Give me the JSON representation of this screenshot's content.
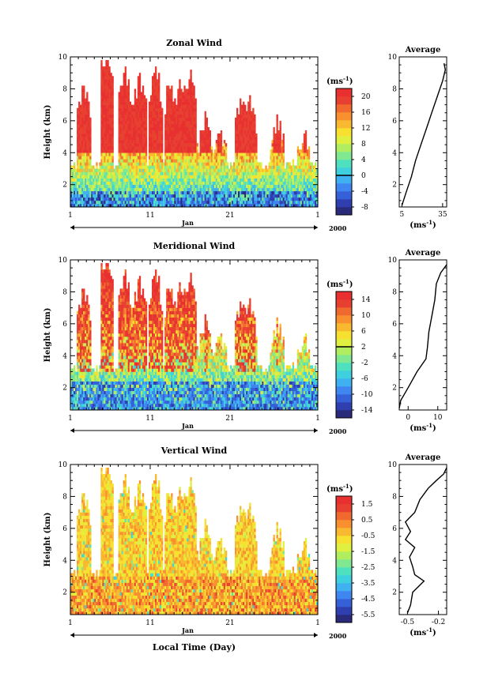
{
  "figure": {
    "xlabel": "Local Time (Day)",
    "month_label": "Jan",
    "year_label": "2000",
    "ylabel": "Height (km)",
    "unit": "(ms",
    "unit_exp": "-1",
    "unit_close": ")",
    "avg_title": "Average"
  },
  "chart_data": [
    {
      "type": "heatmap",
      "title": "Zonal Wind",
      "xlabel": "",
      "ylabel": "Height (km)",
      "x_ticks": [
        "1",
        "11",
        "21",
        "1"
      ],
      "x_range_days": [
        1,
        32
      ],
      "ylim": [
        0.6,
        10
      ],
      "y_ticks": [
        2,
        4,
        6,
        8,
        10
      ],
      "colorbar": {
        "unit": "ms-1",
        "ticks": [
          "20",
          "16",
          "12",
          "8",
          "4",
          "0",
          "-4",
          "-8"
        ],
        "range": [
          -10,
          22
        ],
        "zero_line": 0,
        "colors": [
          "#2a2a7a",
          "#2f3fb0",
          "#3560d8",
          "#3f86f0",
          "#3fb0f0",
          "#3fd0e0",
          "#4fe0c0",
          "#7fe890",
          "#b0ee60",
          "#e0f040",
          "#f8e030",
          "#f8b830",
          "#f89030",
          "#f06a30",
          "#e84030",
          "#e83030"
        ]
      },
      "average_profile": {
        "xlabel": "(ms-1)",
        "x_ticks": [
          "5",
          "35"
        ],
        "xlim": [
          3,
          38
        ],
        "height_km": [
          0.7,
          1.5,
          2.5,
          3.5,
          4.5,
          5.5,
          6.5,
          7.5,
          8.5,
          9.2,
          9.6
        ],
        "values": [
          5,
          8,
          12,
          15,
          19,
          23,
          27,
          31,
          35,
          37,
          36
        ]
      }
    },
    {
      "type": "heatmap",
      "title": "Meridional Wind",
      "xlabel": "",
      "ylabel": "Height (km)",
      "x_ticks": [
        "1",
        "11",
        "21",
        "1"
      ],
      "x_range_days": [
        1,
        32
      ],
      "ylim": [
        0.6,
        10
      ],
      "y_ticks": [
        2,
        4,
        6,
        8,
        10
      ],
      "colorbar": {
        "unit": "ms-1",
        "ticks": [
          "14",
          "10",
          "6",
          "2",
          "-2",
          "-6",
          "-10",
          "-14"
        ],
        "range": [
          -16,
          16
        ],
        "zero_line": 2,
        "colors": [
          "#2a2a7a",
          "#2f3fb0",
          "#3560d8",
          "#3f86f0",
          "#3fb0f0",
          "#3fd0e0",
          "#4fe0c0",
          "#7fe890",
          "#b0ee60",
          "#e0f040",
          "#f8e030",
          "#f8b830",
          "#f89030",
          "#f06a30",
          "#e84030",
          "#e83030"
        ]
      },
      "average_profile": {
        "xlabel": "(ms-1)",
        "x_ticks": [
          "0",
          "10"
        ],
        "xlim": [
          -3,
          13
        ],
        "height_km": [
          0.7,
          1.2,
          2,
          3,
          3.8,
          4.5,
          5.5,
          6.5,
          7.5,
          8.5,
          9.2,
          9.7
        ],
        "values": [
          -3,
          -2.5,
          0,
          3,
          6,
          6.5,
          7,
          8,
          9,
          9.5,
          11,
          13
        ]
      }
    },
    {
      "type": "heatmap",
      "title": "Vertical Wind",
      "xlabel": "Local Time (Day)",
      "ylabel": "Height (km)",
      "x_ticks": [
        "1",
        "11",
        "21",
        "1"
      ],
      "x_range_days": [
        1,
        32
      ],
      "ylim": [
        0.6,
        10
      ],
      "y_ticks": [
        2,
        4,
        6,
        8,
        10
      ],
      "colorbar": {
        "unit": "ms-1",
        "ticks": [
          "1.5",
          "0.5",
          "-0.5",
          "-1.5",
          "-2.5",
          "-3.5",
          "-4.5",
          "-5.5"
        ],
        "range": [
          -6,
          2
        ],
        "zero_line": null,
        "colors": [
          "#2a2a7a",
          "#2f3fb0",
          "#3560d8",
          "#3f86f0",
          "#3fb0f0",
          "#3fd0e0",
          "#4fe0c0",
          "#7fe890",
          "#b0ee60",
          "#e0f040",
          "#f8e030",
          "#f8b830",
          "#f89030",
          "#f06a30",
          "#e84030",
          "#e83030"
        ]
      },
      "average_profile": {
        "xlabel": "(ms-1)",
        "x_ticks": [
          "-0.5",
          "-0.2"
        ],
        "xlim": [
          -0.58,
          -0.12
        ],
        "height_km": [
          0.7,
          1.2,
          2,
          2.7,
          3.1,
          3.6,
          4.2,
          4.8,
          5.3,
          5.8,
          6.4,
          7,
          7.8,
          8.5,
          9.0,
          9.4,
          9.8
        ],
        "values": [
          -0.5,
          -0.47,
          -0.45,
          -0.34,
          -0.43,
          -0.45,
          -0.48,
          -0.43,
          -0.52,
          -0.47,
          -0.52,
          -0.43,
          -0.38,
          -0.3,
          -0.22,
          -0.15,
          -0.12
        ]
      }
    }
  ]
}
